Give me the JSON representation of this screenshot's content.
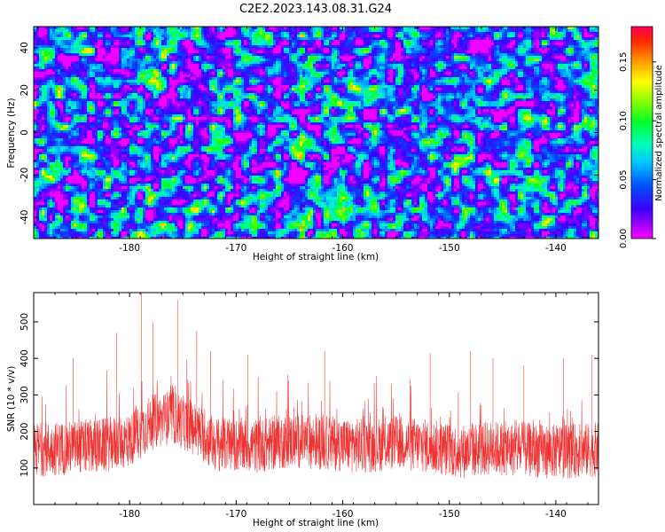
{
  "title": "C2E2.2023.143.08.31.G24",
  "chart_data": [
    {
      "type": "heatmap",
      "xlabel": "Height of straight line (km)",
      "ylabel": "Frequency (Hz)",
      "xlim": [
        -189,
        -136
      ],
      "ylim": [
        -50,
        50
      ],
      "xticks": [
        -180,
        -170,
        -160,
        -150,
        -140
      ],
      "yticks": [
        -40,
        -20,
        0,
        20,
        40
      ],
      "colorbar": {
        "label": "Normalized spectral amplitude",
        "range": [
          0.0,
          0.18
        ],
        "ticks": [
          "0.00",
          "0.05",
          "0.10",
          "0.15"
        ],
        "colormap": "gist_rainbow_r"
      },
      "values_description_note": ""
    },
    {
      "type": "line",
      "xlabel": "Height of straight line (km)",
      "ylabel": "SNR (10 * v/v)",
      "xlim": [
        -189,
        -136
      ],
      "ylim": [
        0,
        580
      ],
      "xticks": [
        -180,
        -170,
        -160,
        -150,
        -140
      ],
      "yticks": [
        100,
        200,
        300,
        400,
        500
      ],
      "color": "#ee3333",
      "profile": [
        {
          "x": -189,
          "y": 150
        },
        {
          "x": -183,
          "y": 160
        },
        {
          "x": -180,
          "y": 175
        },
        {
          "x": -178,
          "y": 225
        },
        {
          "x": -176,
          "y": 240
        },
        {
          "x": -174,
          "y": 210
        },
        {
          "x": -172,
          "y": 165
        },
        {
          "x": -168,
          "y": 160
        },
        {
          "x": -165,
          "y": 175
        },
        {
          "x": -162,
          "y": 170
        },
        {
          "x": -158,
          "y": 160
        },
        {
          "x": -155,
          "y": 170
        },
        {
          "x": -152,
          "y": 160
        },
        {
          "x": -149,
          "y": 145
        },
        {
          "x": -146,
          "y": 155
        },
        {
          "x": -143,
          "y": 150
        },
        {
          "x": -140,
          "y": 145
        },
        {
          "x": -136,
          "y": 150
        }
      ],
      "spikes": [
        {
          "x": -178.9,
          "y": 580
        },
        {
          "x": -175.5,
          "y": 560
        },
        {
          "x": -181.2,
          "y": 470
        },
        {
          "x": -177.8,
          "y": 500
        },
        {
          "x": -173.7,
          "y": 475
        },
        {
          "x": -172.4,
          "y": 420
        },
        {
          "x": -168.9,
          "y": 410
        },
        {
          "x": -161.7,
          "y": 420
        },
        {
          "x": -151.8,
          "y": 415
        },
        {
          "x": -148.0,
          "y": 420
        },
        {
          "x": -145.9,
          "y": 400
        },
        {
          "x": -143.0,
          "y": 380
        },
        {
          "x": -139.3,
          "y": 400
        },
        {
          "x": -136.6,
          "y": 410
        },
        {
          "x": -185.3,
          "y": 400
        }
      ]
    }
  ]
}
